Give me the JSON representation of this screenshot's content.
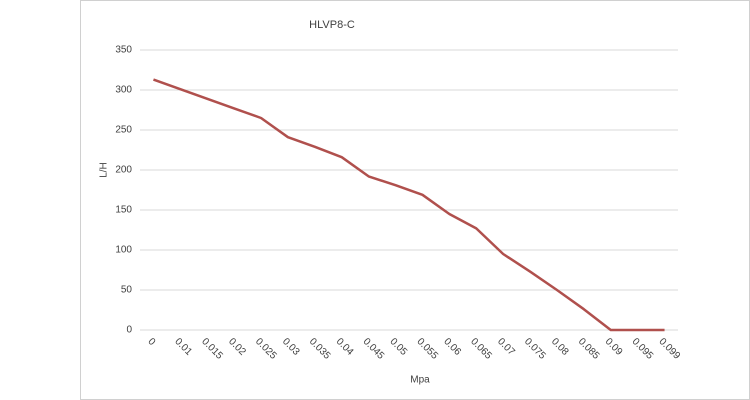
{
  "chart_data": {
    "type": "line",
    "title": "HLVP8-C",
    "x_label": "Mpa",
    "y_label": "L/H",
    "categories": [
      "0",
      "0.01",
      "0.015",
      "0.02",
      "0.025",
      "0.03",
      "0.035",
      "0.04",
      "0.045",
      "0.05",
      "0.055",
      "0.06",
      "0.065",
      "0.07",
      "0.075",
      "0.08",
      "0.085",
      "0.09",
      "0.095",
      "0.099"
    ],
    "series": [
      {
        "name": "HLVP8-C",
        "color": "#b0504d",
        "values": [
          313,
          301,
          289,
          277,
          265,
          241,
          229,
          216,
          192,
          181,
          169,
          145,
          127,
          95,
          73,
          50,
          26,
          0,
          0,
          0
        ]
      }
    ],
    "ylim": [
      0,
      350
    ],
    "yticks": [
      0,
      50,
      100,
      150,
      200,
      250,
      300,
      350
    ],
    "grid": true
  }
}
